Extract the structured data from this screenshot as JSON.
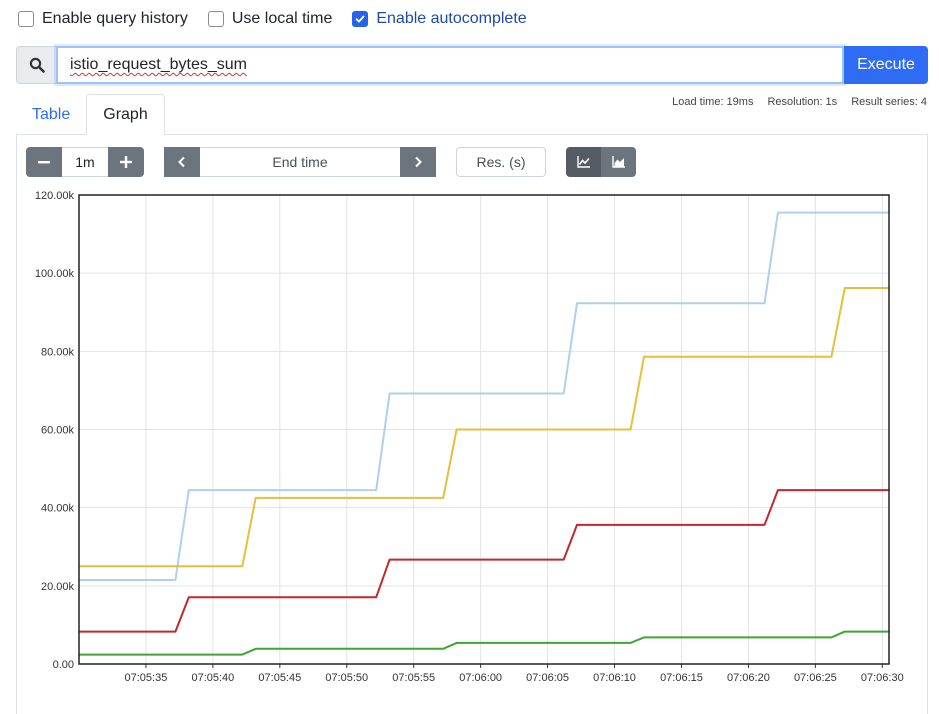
{
  "options": {
    "query_history": {
      "label": "Enable query history",
      "checked": false
    },
    "local_time": {
      "label": "Use local time",
      "checked": false
    },
    "autocomplete": {
      "label": "Enable autocomplete",
      "checked": true
    }
  },
  "query": {
    "value": "istio_request_bytes_sum",
    "execute_label": "Execute",
    "icon": "search-icon"
  },
  "stats": {
    "load_time": "Load time: 19ms",
    "resolution": "Resolution: 1s",
    "result_series": "Result series: 4"
  },
  "tabs": [
    {
      "label": "Table"
    },
    {
      "label": "Graph",
      "active": true
    }
  ],
  "controls": {
    "range": "1m",
    "end_time_placeholder": "End time",
    "res_placeholder": "Res. (s)",
    "minus_icon": "minus-icon",
    "plus_icon": "plus-icon",
    "prev_icon": "chevron-left-icon",
    "next_icon": "chevron-right-icon",
    "line_icon": "line-chart-icon",
    "stacked_icon": "area-chart-icon"
  },
  "chart_data": {
    "type": "line",
    "y_tick_labels": [
      "0.00",
      "20.00k",
      "40.00k",
      "60.00k",
      "80.00k",
      "100.00k",
      "120.00k"
    ],
    "ylim": [
      0,
      120000
    ],
    "x_tick_labels": [
      "07:05:35",
      "07:05:40",
      "07:05:45",
      "07:05:50",
      "07:05:55",
      "07:06:00",
      "07:06:05",
      "07:06:10",
      "07:06:15",
      "07:06:20",
      "07:06:25",
      "07:06:30"
    ],
    "x_tick_seconds": [
      35,
      40,
      45,
      50,
      55,
      60,
      65,
      70,
      75,
      80,
      85,
      90
    ],
    "xlim_seconds": [
      30,
      90.5
    ],
    "grid": true,
    "series": [
      {
        "color": "#aed0ee",
        "x": [
          30,
          37.2,
          38.2,
          52.2,
          53.2,
          66.2,
          67.2,
          81.2,
          82.2,
          90.5
        ],
        "y": [
          21500,
          21500,
          44500,
          44500,
          69200,
          69200,
          92300,
          92300,
          115500,
          115500
        ]
      },
      {
        "color": "#e6bf3c",
        "x": [
          30,
          42.2,
          43.2,
          57.2,
          58.2,
          71.2,
          72.2,
          86.2,
          87.2,
          90.5
        ],
        "y": [
          25000,
          25000,
          42500,
          42500,
          60000,
          60000,
          78600,
          78600,
          96200,
          96200
        ]
      },
      {
        "color": "#c0282e",
        "x": [
          30,
          37.2,
          38.2,
          52.2,
          53.2,
          66.2,
          67.2,
          81.2,
          82.2,
          90.5
        ],
        "y": [
          8300,
          8300,
          17100,
          17100,
          26700,
          26700,
          35600,
          35600,
          44500,
          44500
        ]
      },
      {
        "color": "#3fa535",
        "x": [
          30,
          42.2,
          43.2,
          57.2,
          58.2,
          71.2,
          72.2,
          86.2,
          87.2,
          90.5
        ],
        "y": [
          2400,
          2400,
          3900,
          3900,
          5400,
          5400,
          6800,
          6800,
          8300,
          8300
        ]
      }
    ]
  }
}
